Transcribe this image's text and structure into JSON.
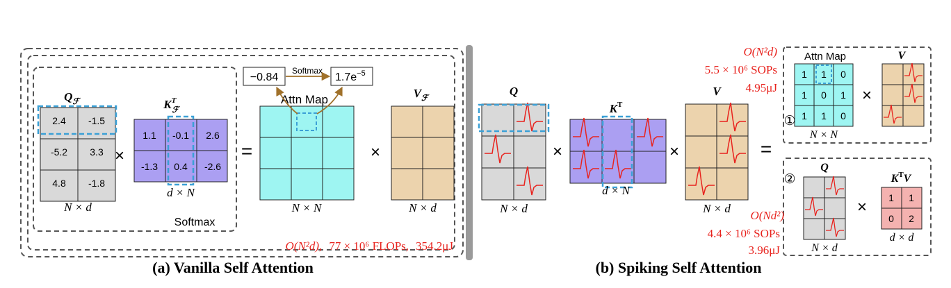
{
  "vanilla": {
    "caption": "(a) Vanilla Self Attention",
    "q": {
      "label": "Q",
      "sub": "ℱ",
      "values": [
        "2.4",
        "-1.5",
        "-5.2",
        "3.3",
        "4.8",
        "-1.8"
      ],
      "dim": "N × d"
    },
    "k": {
      "label": "K",
      "sup": "T",
      "sub": "ℱ",
      "values": [
        "1.1",
        "-0.1",
        "2.6",
        "-1.3",
        "0.4",
        "-2.6"
      ],
      "dim": "d × N"
    },
    "attn": {
      "label": "Attn Map",
      "dim": "N × N"
    },
    "v": {
      "label": "V",
      "sub": "ℱ",
      "dim": "N × d"
    },
    "softmax_box": "Softmax",
    "softmax_arrow": "Softmax",
    "pre_softmax": "−0.84",
    "post_softmax": "1.7e",
    "post_softmax_exp": "−5",
    "cost": {
      "complexity": "O(N²d),",
      "flops": "77 × 10⁶ FLOPs,",
      "energy": "354.2μJ"
    },
    "times": "×",
    "equals": "="
  },
  "spiking": {
    "caption": "(b) Spiking Self Attention",
    "q": {
      "label": "Q",
      "dim": "N × d"
    },
    "k": {
      "label": "K",
      "sup": "T",
      "dim": "d × N"
    },
    "v": {
      "label": "V",
      "dim": "N × d"
    },
    "times": "×",
    "equals": "=",
    "option1": {
      "marker": "①",
      "cost": {
        "complexity": "O(N²d)",
        "sops": "5.5 × 10⁶ SOPs",
        "energy": "4.95μJ"
      },
      "attn": {
        "label": "Attn Map",
        "values": [
          "1",
          "1",
          "0",
          "1",
          "0",
          "1",
          "1",
          "1",
          "0"
        ],
        "dim": "N × N"
      },
      "v": {
        "label": "V"
      }
    },
    "option2": {
      "marker": "②",
      "cost": {
        "complexity": "O(Nd²)",
        "sops": "4.4 × 10⁶ SOPs",
        "energy": "3.96μJ"
      },
      "q": {
        "label": "Q",
        "dim": "N × d"
      },
      "ktv": {
        "label": "K",
        "sup": "T",
        "suffix": "V",
        "values": [
          "1",
          "1",
          "0",
          "2"
        ],
        "dim": "d × d"
      }
    }
  },
  "colors": {
    "q": "#d9d9d9",
    "k": "#ab9ff2",
    "attn": "#9ef5f2",
    "v": "#ecd3ad",
    "ktv": "#f4b2b0",
    "cost": "#e8231e",
    "highlight": "#3ba0d6",
    "spike": "#e8231e",
    "arrow": "#a0712a"
  }
}
